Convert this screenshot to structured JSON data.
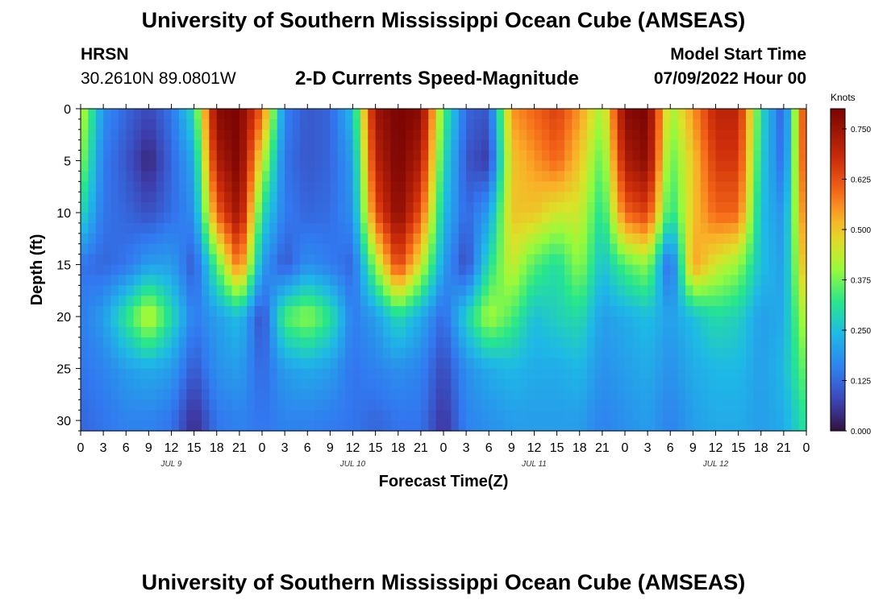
{
  "header": {
    "title": "University of Southern Mississippi Ocean Cube (AMSEAS)",
    "station": "HRSN",
    "coordinates": "30.2610N  89.0801W",
    "subtitle": "2-D Currents Speed-Magnitude",
    "model_start_label": "Model Start Time",
    "model_start_value": "07/09/2022 Hour 00"
  },
  "footer": {
    "title": "University of Southern Mississippi Ocean Cube (AMSEAS)"
  },
  "chart_data": {
    "type": "heatmap",
    "title": "2-D Currents Speed-Magnitude",
    "xlabel": "Forecast Time(Z)",
    "ylabel": "Depth (ft)",
    "x_range_hours": [
      0,
      96
    ],
    "y_range_ft": [
      0,
      31
    ],
    "y_ticks": [
      0,
      5,
      10,
      15,
      20,
      25,
      30
    ],
    "x_tick_labels": [
      "0",
      "3",
      "6",
      "9",
      "12",
      "15",
      "18",
      "21",
      "0",
      "3",
      "6",
      "9",
      "12",
      "15",
      "18",
      "21",
      "0",
      "3",
      "6",
      "9",
      "12",
      "15",
      "18",
      "21",
      "0",
      "3",
      "6",
      "9",
      "12",
      "15",
      "18",
      "21",
      "0"
    ],
    "day_labels": [
      {
        "label": "JUL 9",
        "hour": 12
      },
      {
        "label": "JUL 10",
        "hour": 36
      },
      {
        "label": "JUL 11",
        "hour": 60
      },
      {
        "label": "JUL 12",
        "hour": 84
      }
    ],
    "colorbar": {
      "unit": "Knots",
      "min": 0,
      "max": 0.8,
      "ticks": [
        "0.000",
        "0.125",
        "0.250",
        "0.375",
        "0.500",
        "0.625",
        "0.750"
      ],
      "tick_values": [
        0,
        0.125,
        0.25,
        0.375,
        0.5,
        0.625,
        0.75
      ]
    },
    "speed_field_knots": {
      "depths_ft": [
        0,
        5,
        10,
        15,
        20,
        25,
        30
      ],
      "note": "Approximate current speed by forecast hour (columns every 3h, 0-96) and depth (rows)",
      "hours": [
        0,
        3,
        6,
        9,
        12,
        15,
        18,
        21,
        24,
        27,
        30,
        33,
        36,
        39,
        42,
        45,
        48,
        51,
        54,
        57,
        60,
        63,
        66,
        69,
        72,
        75,
        78,
        81,
        84,
        87,
        90,
        93,
        96
      ],
      "rows": [
        [
          0.45,
          0.18,
          0.12,
          0.08,
          0.14,
          0.3,
          0.78,
          0.8,
          0.6,
          0.16,
          0.1,
          0.12,
          0.25,
          0.75,
          0.8,
          0.78,
          0.35,
          0.12,
          0.1,
          0.55,
          0.6,
          0.65,
          0.55,
          0.4,
          0.78,
          0.8,
          0.4,
          0.55,
          0.7,
          0.7,
          0.3,
          0.1,
          0.7
        ],
        [
          0.4,
          0.15,
          0.1,
          0.03,
          0.12,
          0.22,
          0.72,
          0.8,
          0.45,
          0.14,
          0.1,
          0.12,
          0.2,
          0.7,
          0.8,
          0.72,
          0.3,
          0.1,
          0.06,
          0.5,
          0.55,
          0.6,
          0.5,
          0.35,
          0.72,
          0.78,
          0.35,
          0.5,
          0.66,
          0.66,
          0.28,
          0.12,
          0.68
        ],
        [
          0.3,
          0.14,
          0.12,
          0.09,
          0.13,
          0.18,
          0.6,
          0.76,
          0.3,
          0.15,
          0.12,
          0.13,
          0.18,
          0.62,
          0.78,
          0.62,
          0.25,
          0.12,
          0.2,
          0.5,
          0.5,
          0.45,
          0.45,
          0.3,
          0.6,
          0.65,
          0.3,
          0.5,
          0.6,
          0.6,
          0.25,
          0.18,
          0.62
        ],
        [
          0.14,
          0.12,
          0.14,
          0.2,
          0.2,
          0.1,
          0.35,
          0.6,
          0.2,
          0.1,
          0.18,
          0.15,
          0.12,
          0.4,
          0.65,
          0.45,
          0.2,
          0.08,
          0.3,
          0.45,
          0.35,
          0.3,
          0.4,
          0.25,
          0.35,
          0.4,
          0.1,
          0.55,
          0.45,
          0.4,
          0.25,
          0.2,
          0.55
        ],
        [
          0.15,
          0.2,
          0.32,
          0.45,
          0.3,
          0.15,
          0.2,
          0.25,
          0.08,
          0.35,
          0.4,
          0.32,
          0.15,
          0.2,
          0.3,
          0.22,
          0.12,
          0.28,
          0.42,
          0.35,
          0.25,
          0.28,
          0.3,
          0.2,
          0.22,
          0.25,
          0.2,
          0.25,
          0.3,
          0.28,
          0.2,
          0.22,
          0.45
        ],
        [
          0.14,
          0.16,
          0.2,
          0.22,
          0.2,
          0.1,
          0.18,
          0.2,
          0.12,
          0.2,
          0.22,
          0.2,
          0.14,
          0.16,
          0.18,
          0.16,
          0.08,
          0.18,
          0.22,
          0.24,
          0.22,
          0.22,
          0.24,
          0.18,
          0.2,
          0.22,
          0.18,
          0.22,
          0.24,
          0.24,
          0.2,
          0.24,
          0.38
        ],
        [
          0.12,
          0.14,
          0.16,
          0.16,
          0.14,
          0.04,
          0.14,
          0.16,
          0.14,
          0.16,
          0.16,
          0.15,
          0.14,
          0.12,
          0.14,
          0.14,
          0.05,
          0.16,
          0.18,
          0.2,
          0.2,
          0.2,
          0.2,
          0.16,
          0.18,
          0.2,
          0.16,
          0.2,
          0.22,
          0.22,
          0.2,
          0.22,
          0.32
        ]
      ]
    }
  }
}
